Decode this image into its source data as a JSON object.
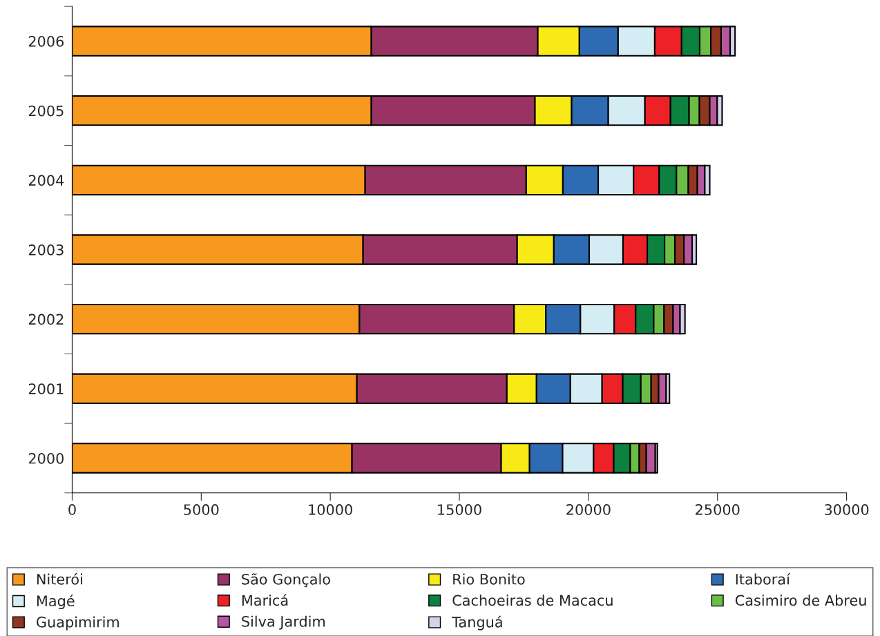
{
  "chart_data": {
    "type": "bar",
    "orientation": "horizontal",
    "stacked": true,
    "categories": [
      "2006",
      "2005",
      "2004",
      "2003",
      "2002",
      "2001",
      "2000"
    ],
    "series": [
      {
        "name": "Niterói",
        "color": "#f7991f",
        "values": [
          11590,
          11590,
          11350,
          11270,
          11130,
          11030,
          10840
        ]
      },
      {
        "name": "São Gonçalo",
        "color": "#983363",
        "values": [
          6450,
          6340,
          6240,
          5970,
          5990,
          5810,
          5780
        ]
      },
      {
        "name": "Rio Bonito",
        "color": "#f7ea16",
        "values": [
          1610,
          1420,
          1420,
          1420,
          1230,
          1150,
          1100
        ]
      },
      {
        "name": "Itaboraí",
        "color": "#2f6bb2",
        "values": [
          1500,
          1420,
          1370,
          1370,
          1340,
          1310,
          1280
        ]
      },
      {
        "name": "Magé",
        "color": "#d4ecf3",
        "values": [
          1420,
          1420,
          1370,
          1310,
          1310,
          1230,
          1200
        ]
      },
      {
        "name": "Maricá",
        "color": "#ec2227",
        "values": [
          1040,
          990,
          990,
          940,
          830,
          800,
          780
        ]
      },
      {
        "name": "Cachoeiras de Macacu",
        "color": "#0c8140",
        "values": [
          700,
          720,
          670,
          670,
          700,
          700,
          640
        ]
      },
      {
        "name": "Casimiro de Abreu",
        "color": "#6cbd45",
        "values": [
          430,
          400,
          460,
          400,
          400,
          400,
          350
        ]
      },
      {
        "name": "Guapimirim",
        "color": "#913720",
        "values": [
          400,
          400,
          350,
          350,
          350,
          290,
          270
        ]
      },
      {
        "name": "Silva Jardim",
        "color": "#b6569f",
        "values": [
          350,
          290,
          290,
          320,
          270,
          290,
          350
        ]
      },
      {
        "name": "Tanguá",
        "color": "#d5d3eb",
        "values": [
          190,
          190,
          190,
          160,
          190,
          130,
          80
        ]
      }
    ],
    "xlim": [
      0,
      30000
    ],
    "xticks": [
      0,
      5000,
      10000,
      15000,
      20000,
      25000,
      30000
    ],
    "grid": false,
    "legend": "bottom"
  }
}
